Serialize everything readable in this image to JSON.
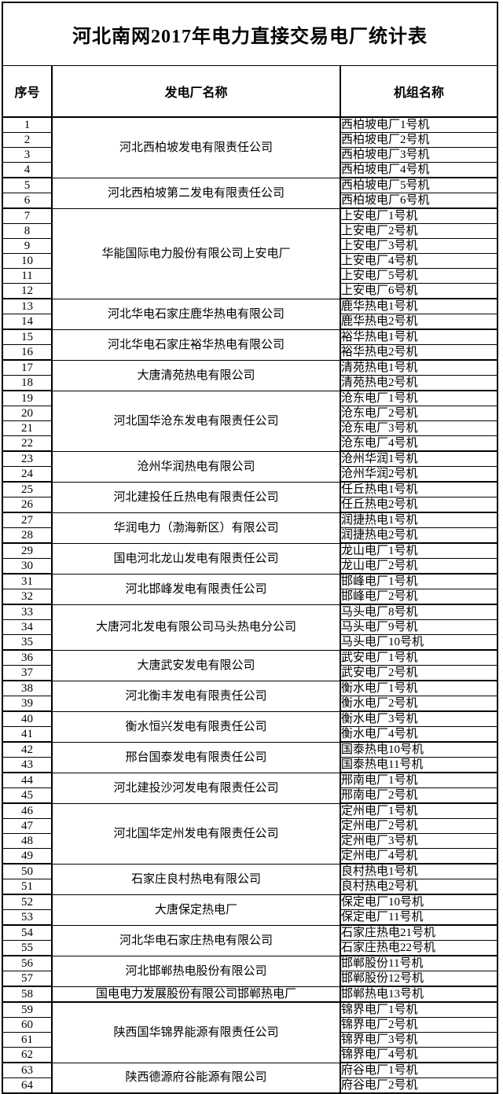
{
  "title": "河北南网2017年电力直接交易电厂统计表",
  "columns": {
    "serial": "序号",
    "plant": "发电厂名称",
    "unit": "机组名称"
  },
  "colors": {
    "background": "#ffffff",
    "text": "#000000",
    "border": "#000000"
  },
  "groups": [
    {
      "plant": "河北西柏坡发电有限责任公司",
      "rows": [
        {
          "no": "1",
          "unit": "西柏坡电厂1号机"
        },
        {
          "no": "2",
          "unit": "西柏坡电厂2号机"
        },
        {
          "no": "3",
          "unit": "西柏坡电厂3号机"
        },
        {
          "no": "4",
          "unit": "西柏坡电厂4号机"
        }
      ]
    },
    {
      "plant": "河北西柏坡第二发电有限责任公司",
      "rows": [
        {
          "no": "5",
          "unit": "西柏坡电厂5号机"
        },
        {
          "no": "6",
          "unit": "西柏坡电厂6号机"
        }
      ]
    },
    {
      "plant": "华能国际电力股份有限公司上安电厂",
      "rows": [
        {
          "no": "7",
          "unit": "上安电厂1号机"
        },
        {
          "no": "8",
          "unit": "上安电厂2号机"
        },
        {
          "no": "9",
          "unit": "上安电厂3号机"
        },
        {
          "no": "10",
          "unit": "上安电厂4号机"
        },
        {
          "no": "11",
          "unit": "上安电厂5号机"
        },
        {
          "no": "12",
          "unit": "上安电厂6号机"
        }
      ]
    },
    {
      "plant": "河北华电石家庄鹿华热电有限公司",
      "rows": [
        {
          "no": "13",
          "unit": "鹿华热电1号机"
        },
        {
          "no": "14",
          "unit": "鹿华热电2号机"
        }
      ]
    },
    {
      "plant": "河北华电石家庄裕华热电有限公司",
      "rows": [
        {
          "no": "15",
          "unit": "裕华热电1号机"
        },
        {
          "no": "16",
          "unit": "裕华热电2号机"
        }
      ]
    },
    {
      "plant": "大唐清苑热电有限公司",
      "rows": [
        {
          "no": "17",
          "unit": "清苑热电1号机"
        },
        {
          "no": "18",
          "unit": "清苑热电2号机"
        }
      ]
    },
    {
      "plant": "河北国华沧东发电有限责任公司",
      "rows": [
        {
          "no": "19",
          "unit": "沧东电厂1号机"
        },
        {
          "no": "20",
          "unit": "沧东电厂2号机"
        },
        {
          "no": "21",
          "unit": "沧东电厂3号机"
        },
        {
          "no": "22",
          "unit": "沧东电厂4号机"
        }
      ]
    },
    {
      "plant": "沧州华润热电有限公司",
      "rows": [
        {
          "no": "23",
          "unit": "沧州华润1号机"
        },
        {
          "no": "24",
          "unit": "沧州华润2号机"
        }
      ]
    },
    {
      "plant": "河北建投任丘热电有限责任公司",
      "rows": [
        {
          "no": "25",
          "unit": "任丘热电1号机"
        },
        {
          "no": "26",
          "unit": "任丘热电2号机"
        }
      ]
    },
    {
      "plant": "华润电力（渤海新区）有限公司",
      "rows": [
        {
          "no": "27",
          "unit": "润捷热电1号机"
        },
        {
          "no": "28",
          "unit": "润捷热电2号机"
        }
      ]
    },
    {
      "plant": "国电河北龙山发电有限责任公司",
      "rows": [
        {
          "no": "29",
          "unit": "龙山电厂1号机"
        },
        {
          "no": "30",
          "unit": "龙山电厂2号机"
        }
      ]
    },
    {
      "plant": "河北邯峰发电有限责任公司",
      "rows": [
        {
          "no": "31",
          "unit": "邯峰电厂1号机"
        },
        {
          "no": "32",
          "unit": "邯峰电厂2号机"
        }
      ]
    },
    {
      "plant": "大唐河北发电有限公司马头热电分公司",
      "rows": [
        {
          "no": "33",
          "unit": "马头电厂8号机"
        },
        {
          "no": "34",
          "unit": "马头电厂9号机"
        },
        {
          "no": "35",
          "unit": "马头电厂10号机"
        }
      ]
    },
    {
      "plant": "大唐武安发电有限公司",
      "rows": [
        {
          "no": "36",
          "unit": "武安电厂1号机"
        },
        {
          "no": "37",
          "unit": "武安电厂2号机"
        }
      ]
    },
    {
      "plant": "河北衡丰发电有限责任公司",
      "rows": [
        {
          "no": "38",
          "unit": "衡水电厂1号机"
        },
        {
          "no": "39",
          "unit": "衡水电厂2号机"
        }
      ]
    },
    {
      "plant": "衡水恒兴发电有限责任公司",
      "rows": [
        {
          "no": "40",
          "unit": "衡水电厂3号机"
        },
        {
          "no": "41",
          "unit": "衡水电厂4号机"
        }
      ]
    },
    {
      "plant": "邢台国泰发电有限责任公司",
      "rows": [
        {
          "no": "42",
          "unit": "国泰热电10号机"
        },
        {
          "no": "43",
          "unit": "国泰热电11号机"
        }
      ]
    },
    {
      "plant": "河北建投沙河发电有限责任公司",
      "rows": [
        {
          "no": "44",
          "unit": "邢南电厂1号机"
        },
        {
          "no": "45",
          "unit": "邢南电厂2号机"
        }
      ]
    },
    {
      "plant": "河北国华定州发电有限责任公司",
      "rows": [
        {
          "no": "46",
          "unit": "定州电厂1号机"
        },
        {
          "no": "47",
          "unit": "定州电厂2号机"
        },
        {
          "no": "48",
          "unit": "定州电厂3号机"
        },
        {
          "no": "49",
          "unit": "定州电厂4号机"
        }
      ]
    },
    {
      "plant": "石家庄良村热电有限公司",
      "rows": [
        {
          "no": "50",
          "unit": "良村热电1号机"
        },
        {
          "no": "51",
          "unit": "良村热电2号机"
        }
      ]
    },
    {
      "plant": "大唐保定热电厂",
      "rows": [
        {
          "no": "52",
          "unit": "保定电厂10号机"
        },
        {
          "no": "53",
          "unit": "保定电厂11号机"
        }
      ]
    },
    {
      "plant": "河北华电石家庄热电有限公司",
      "rows": [
        {
          "no": "54",
          "unit": "石家庄热电21号机"
        },
        {
          "no": "55",
          "unit": "石家庄热电22号机"
        }
      ]
    },
    {
      "plant": "河北邯郸热电股份有限公司",
      "rows": [
        {
          "no": "56",
          "unit": "邯郸股份11号机"
        },
        {
          "no": "57",
          "unit": "邯郸股份12号机"
        }
      ]
    },
    {
      "plant": "国电电力发展股份有限公司邯郸热电厂",
      "rows": [
        {
          "no": "58",
          "unit": "邯郸热电13号机"
        }
      ]
    },
    {
      "plant": "陕西国华锦界能源有限责任公司",
      "rows": [
        {
          "no": "59",
          "unit": "锦界电厂1号机"
        },
        {
          "no": "60",
          "unit": "锦界电厂2号机"
        },
        {
          "no": "61",
          "unit": "锦界电厂3号机"
        },
        {
          "no": "62",
          "unit": "锦界电厂4号机"
        }
      ]
    },
    {
      "plant": "陕西德源府谷能源有限公司",
      "rows": [
        {
          "no": "63",
          "unit": "府谷电厂1号机"
        },
        {
          "no": "64",
          "unit": "府谷电厂2号机"
        }
      ]
    }
  ]
}
